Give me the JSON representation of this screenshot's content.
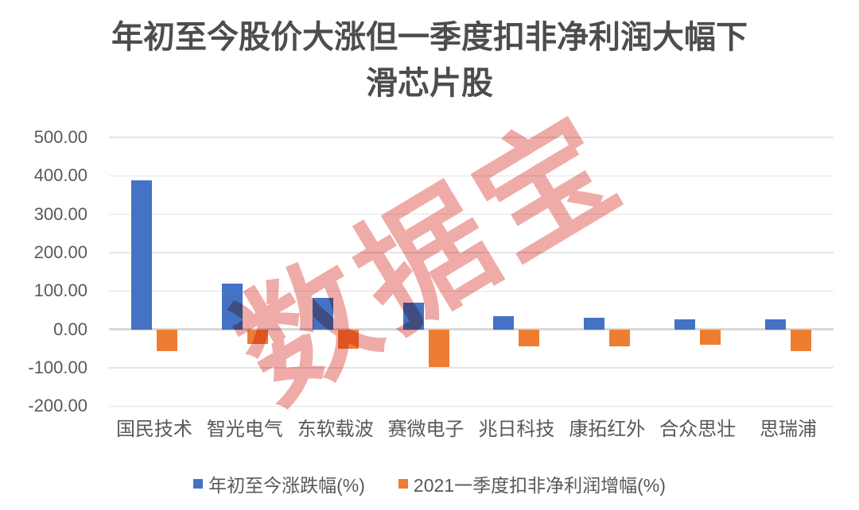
{
  "title": {
    "line1": "年初至今股价大涨但一季度扣非净利润大幅下",
    "line2": "滑芯片股"
  },
  "watermark": {
    "text": "数据宝",
    "color": "#e26661",
    "opacity": 0.55
  },
  "chart_data": {
    "type": "bar",
    "title": "年初至今股价大涨但一季度扣非净利润大幅下滑芯片股",
    "categories": [
      "国民技术",
      "智光电气",
      "东软载波",
      "赛微电子",
      "兆日科技",
      "康拓红外",
      "合众思壮",
      "思瑞浦"
    ],
    "series": [
      {
        "name": "年初至今涨跌幅(%)",
        "color": "#4472C4",
        "values": [
          388,
          119,
          83,
          70,
          35,
          31,
          27,
          26
        ]
      },
      {
        "name": "2021一季度扣非净利润增幅(%)",
        "color": "#ED7D31",
        "values": [
          -57,
          -38,
          -50,
          -97,
          -45,
          -44,
          -40,
          -57
        ]
      }
    ],
    "xlabel": "",
    "ylabel": "",
    "ylim": [
      -200,
      500
    ],
    "ytick_values": [
      500,
      400,
      300,
      200,
      100,
      0,
      -100,
      -200
    ],
    "ytick_labels": [
      "500.00",
      "400.00",
      "300.00",
      "200.00",
      "100.00",
      "0.00",
      "-100.00",
      "-200.00"
    ],
    "grid": true,
    "legend_position": "bottom",
    "axis_text_color": "#595959",
    "gridline_color": "#e4e4e4"
  }
}
